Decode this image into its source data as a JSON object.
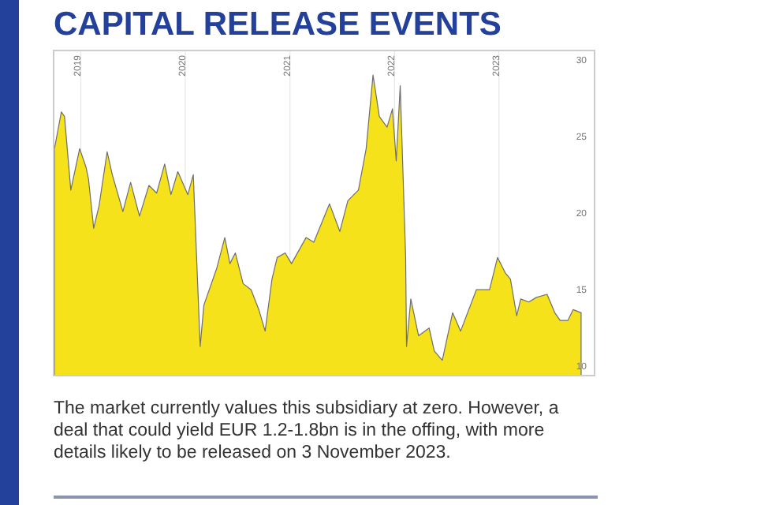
{
  "chart_data": {
    "type": "area",
    "title": "CAPITAL RELEASE EVENTS",
    "annotations": [
      "The market currently values this subsidiary at zero. However, a deal that could yield EUR 1.2-1.8bn is in the offing, with more details likely to be released on 3 November 2023."
    ],
    "x": [
      "2018-10-01",
      "2018-10-25",
      "2018-11-05",
      "2018-11-27",
      "2018-12-28",
      "2019-01-19",
      "2019-01-28",
      "2019-02-15",
      "2019-03-06",
      "2019-04-03",
      "2019-04-21",
      "2019-05-28",
      "2019-06-24",
      "2019-07-25",
      "2019-08-27",
      "2019-09-23",
      "2019-10-21",
      "2019-11-12",
      "2019-12-06",
      "2020-01-10",
      "2020-01-29",
      "2020-02-22",
      "2020-03-06",
      "2020-04-20",
      "2020-05-18",
      "2020-06-05",
      "2020-06-24",
      "2020-07-21",
      "2020-08-18",
      "2020-09-14",
      "2020-10-06",
      "2020-10-30",
      "2020-11-17",
      "2020-12-15",
      "2021-01-06",
      "2021-02-26",
      "2021-03-25",
      "2021-05-19",
      "2021-06-24",
      "2021-07-22",
      "2021-08-28",
      "2021-09-24",
      "2021-10-18",
      "2021-11-09",
      "2021-12-06",
      "2021-12-25",
      "2022-01-07",
      "2022-01-21",
      "2022-02-09",
      "2022-02-12",
      "2022-02-27",
      "2022-03-26",
      "2022-05-02",
      "2022-05-20",
      "2022-06-17",
      "2022-07-23",
      "2022-08-20",
      "2022-10-14",
      "2022-11-29",
      "2022-12-27",
      "2023-01-23",
      "2023-02-10",
      "2023-03-04",
      "2023-03-18",
      "2023-04-15",
      "2023-05-12",
      "2023-06-18",
      "2023-07-15",
      "2023-08-03",
      "2023-08-30",
      "2023-09-17",
      "2023-10-15"
    ],
    "series": [
      {
        "color": "#f5e21b",
        "values": [
          24.2,
          26.6,
          26.3,
          21.5,
          24.2,
          23.0,
          22.2,
          19.0,
          20.5,
          24.0,
          22.5,
          20.1,
          22.0,
          19.8,
          21.8,
          21.3,
          23.2,
          21.2,
          22.7,
          21.2,
          22.5,
          11.3,
          14.0,
          16.4,
          18.4,
          16.7,
          17.4,
          15.4,
          15.0,
          13.7,
          12.3,
          15.7,
          17.1,
          17.4,
          16.7,
          18.4,
          18.1,
          20.6,
          18.8,
          20.8,
          21.5,
          24.2,
          29.0,
          26.3,
          25.6,
          26.8,
          23.4,
          28.3,
          17.1,
          11.3,
          14.4,
          12.0,
          12.5,
          11.0,
          10.4,
          13.5,
          12.3,
          15.0,
          15.0,
          17.1,
          16.1,
          15.7,
          13.3,
          14.4,
          14.2,
          14.5,
          14.7,
          13.5,
          13.0,
          13.0,
          13.7,
          13.5
        ]
      }
    ],
    "xlim": [
      "2018-09-28",
      "2023-12-01"
    ],
    "xticks": [
      "2019",
      "2020",
      "2021",
      "2022",
      "2023"
    ],
    "ylim": [
      9.4,
      30.6
    ],
    "yticks": [
      10,
      15,
      20,
      25,
      30
    ],
    "grid": "x"
  }
}
